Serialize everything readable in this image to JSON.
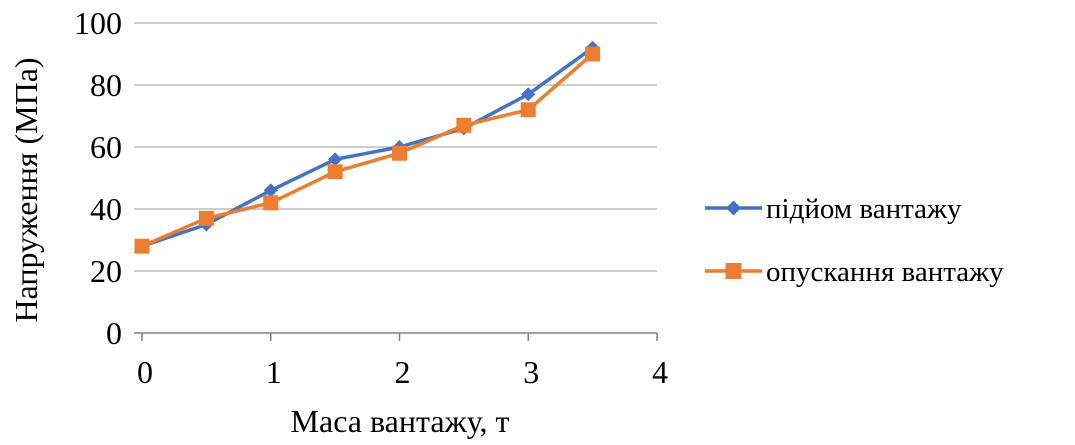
{
  "chart_data": {
    "type": "line",
    "xlabel": "Маса вантажу, т",
    "ylabel": "Напруження (МПа)",
    "xlim": [
      0,
      4
    ],
    "ylim": [
      0,
      100
    ],
    "x_ticks": [
      "0",
      "1",
      "2",
      "3",
      "4"
    ],
    "y_ticks": [
      "0",
      "20",
      "40",
      "60",
      "80",
      "100"
    ],
    "grid": "horizontal",
    "legend_position": "right",
    "series": [
      {
        "name": "підйом вантажу",
        "color": "#4472C4",
        "marker": "diamond",
        "x": [
          0,
          0.5,
          1,
          1.5,
          2,
          2.5,
          3,
          3.5
        ],
        "y": [
          28,
          35,
          46,
          56,
          60,
          66,
          77,
          92
        ]
      },
      {
        "name": "опускання вантажу",
        "color": "#ED7D31",
        "marker": "square",
        "x": [
          0,
          0.5,
          1,
          1.5,
          2,
          2.5,
          3,
          3.5
        ],
        "y": [
          28,
          37,
          42,
          52,
          58,
          67,
          72,
          90
        ]
      }
    ]
  }
}
